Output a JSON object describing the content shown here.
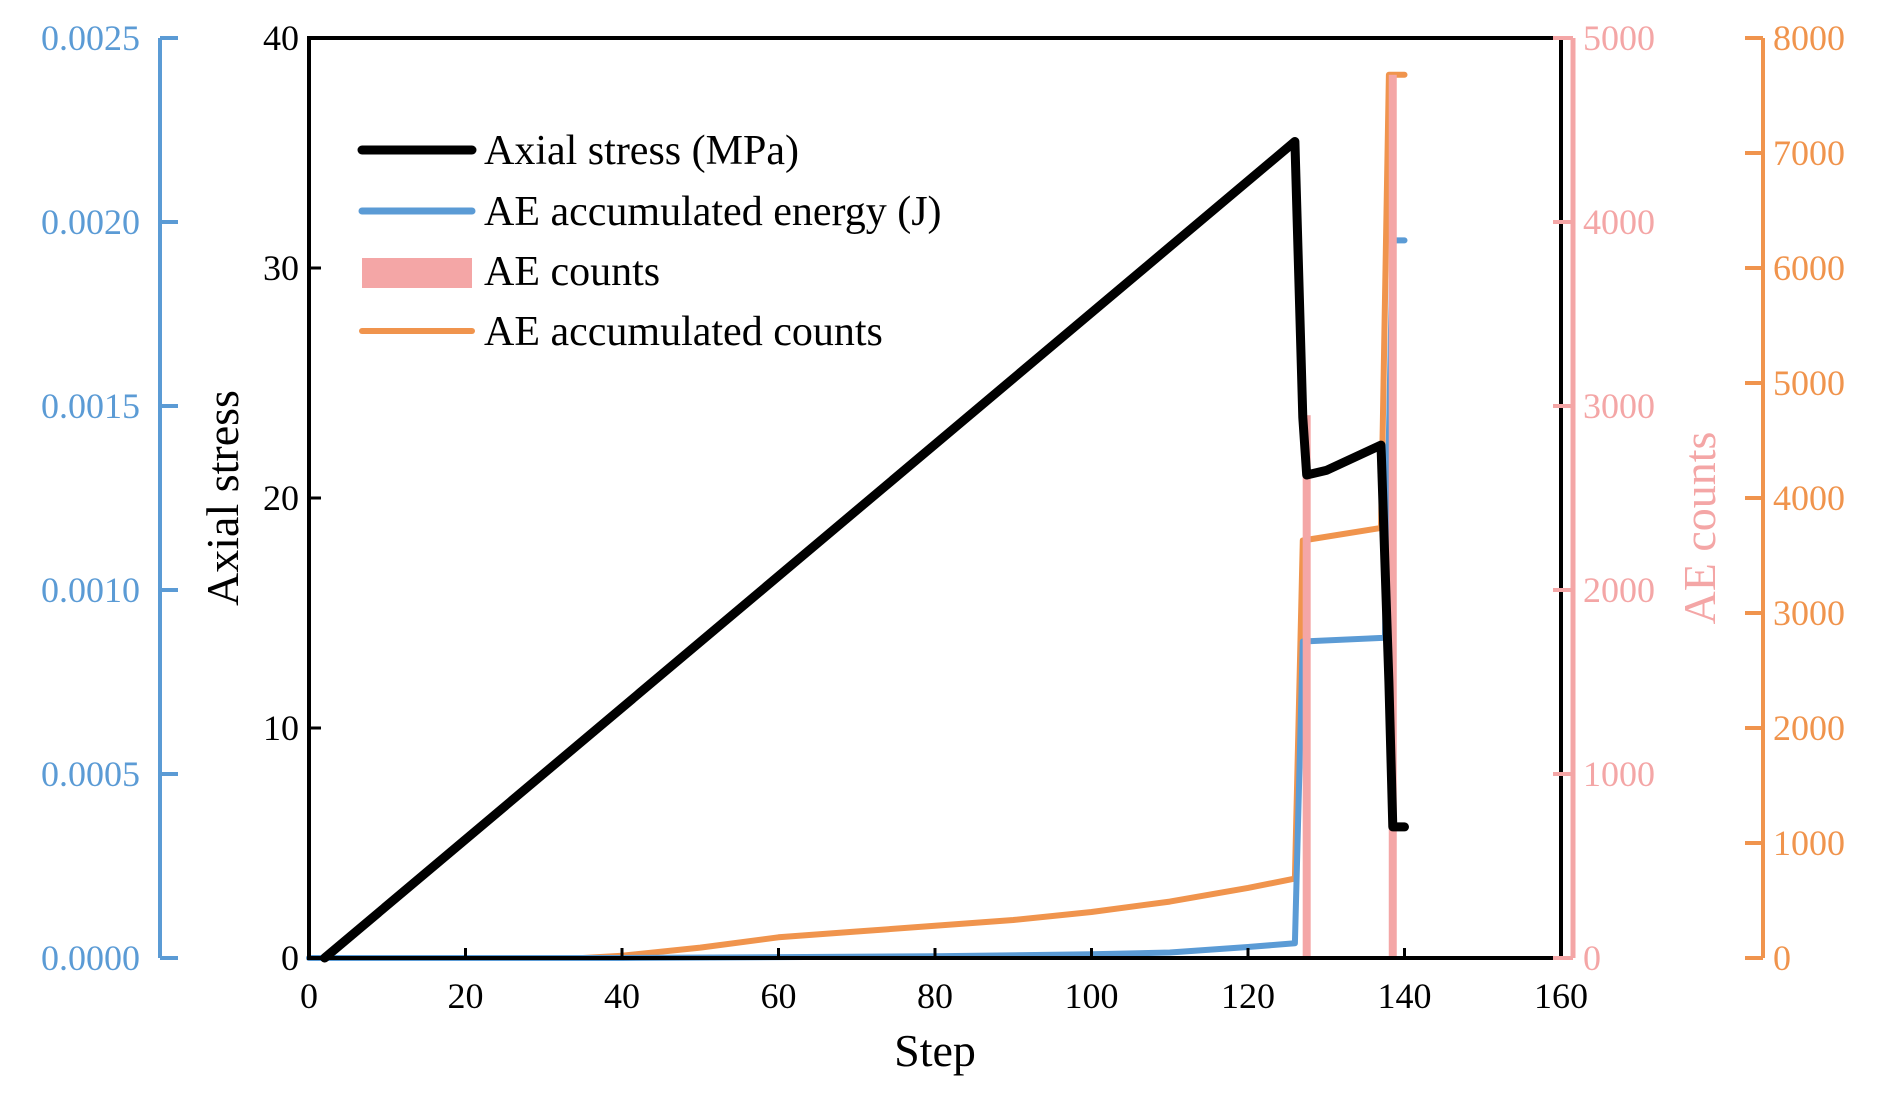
{
  "colors": {
    "stress": "#000000",
    "energy": "#5b9bd5",
    "counts": "#f4a6a6",
    "accumulated": "#f0944d",
    "frame": "#000000"
  },
  "chart_data": {
    "type": "line",
    "xlabel": "Step",
    "xlim": [
      0,
      160
    ],
    "x_ticks": [
      "0",
      "20",
      "40",
      "60",
      "80",
      "100",
      "120",
      "140",
      "160"
    ],
    "axes": {
      "stress": {
        "label": "Axial stress",
        "range": [
          0,
          40
        ],
        "ticks": [
          "0",
          "10",
          "20",
          "30",
          "40"
        ]
      },
      "energy": {
        "label": "",
        "range": [
          0,
          0.0025
        ],
        "ticks": [
          "0.0000",
          "0.0005",
          "0.0010",
          "0.0015",
          "0.0020",
          "0.0025"
        ]
      },
      "counts": {
        "label": "AE counts",
        "range": [
          0,
          5000
        ],
        "ticks": [
          "0",
          "1000",
          "2000",
          "3000",
          "4000",
          "5000"
        ]
      },
      "accumulated": {
        "label": "",
        "range": [
          0,
          8000
        ],
        "ticks": [
          "0",
          "1000",
          "2000",
          "3000",
          "4000",
          "5000",
          "6000",
          "7000",
          "8000"
        ]
      }
    },
    "legend": {
      "placement": "top-left",
      "entries": [
        "Axial stress (MPa)",
        "AE accumulated energy (J)",
        "AE counts",
        "AE accumulated counts"
      ]
    },
    "series": [
      {
        "name": "Axial stress (MPa)",
        "axis": "stress",
        "style": "line",
        "x": [
          2,
          126,
          127,
          127.5,
          130,
          137,
          138,
          138.5,
          140
        ],
        "values": [
          0,
          35.5,
          23.5,
          21,
          21.2,
          22.3,
          12,
          5.7,
          5.7
        ]
      },
      {
        "name": "AE accumulated energy (J)",
        "axis": "energy",
        "style": "line",
        "x": [
          0,
          40,
          80,
          100,
          110,
          120,
          126,
          127,
          137.5,
          138.5,
          140
        ],
        "values": [
          0,
          0,
          5e-06,
          1e-05,
          1.5e-05,
          3e-05,
          4e-05,
          0.00086,
          0.00087,
          0.00195,
          0.00195
        ]
      },
      {
        "name": "AE counts",
        "axis": "counts",
        "style": "bar",
        "x": [
          127.5,
          138.5
        ],
        "values": [
          2950,
          4800
        ]
      },
      {
        "name": "AE accumulated counts",
        "axis": "accumulated",
        "style": "line",
        "x": [
          0,
          35,
          40,
          50,
          60,
          70,
          80,
          90,
          100,
          110,
          120,
          126,
          127,
          137,
          138,
          140
        ],
        "values": [
          0,
          0,
          20,
          90,
          180,
          230,
          280,
          330,
          400,
          490,
          610,
          690,
          3630,
          3740,
          7680,
          7680
        ]
      }
    ]
  }
}
